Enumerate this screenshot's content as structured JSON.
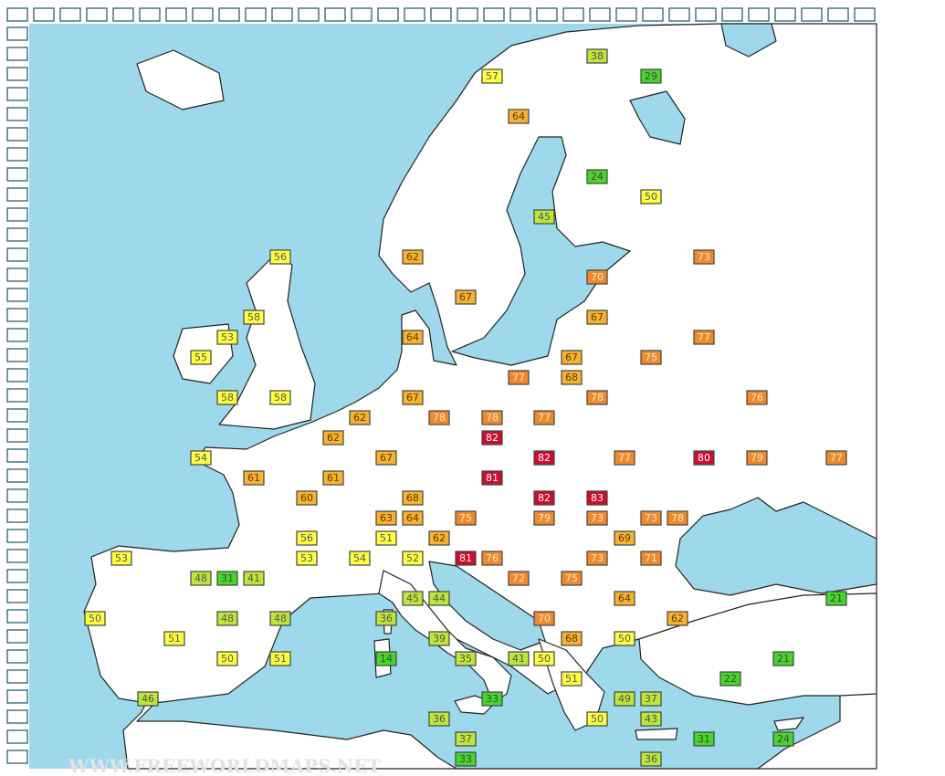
{
  "labels": [
    38,
    57,
    29,
    64,
    24,
    50,
    45,
    56,
    62,
    73,
    70,
    67,
    58,
    67,
    53,
    64,
    77,
    55,
    67,
    75,
    77,
    68,
    58,
    58,
    67,
    78,
    76,
    62,
    78,
    78,
    77,
    62,
    82,
    54,
    67,
    82,
    77,
    80,
    79,
    77,
    61,
    61,
    81,
    60,
    68,
    82,
    83,
    63,
    64,
    75,
    79,
    73,
    73,
    78,
    56,
    51,
    62,
    69,
    53,
    53,
    54,
    52,
    81,
    76,
    73,
    71,
    48,
    31,
    41,
    72,
    75,
    45,
    44,
    64,
    21,
    50,
    48,
    48,
    36,
    70,
    62,
    51,
    39,
    68,
    50,
    50,
    51,
    14,
    35,
    41,
    50,
    21,
    51,
    22,
    46,
    33,
    49,
    37,
    36,
    50,
    43,
    37,
    31,
    24,
    33,
    36
  ],
  "watermark": "WWW.FREEWORLDMAPS.NET"
}
